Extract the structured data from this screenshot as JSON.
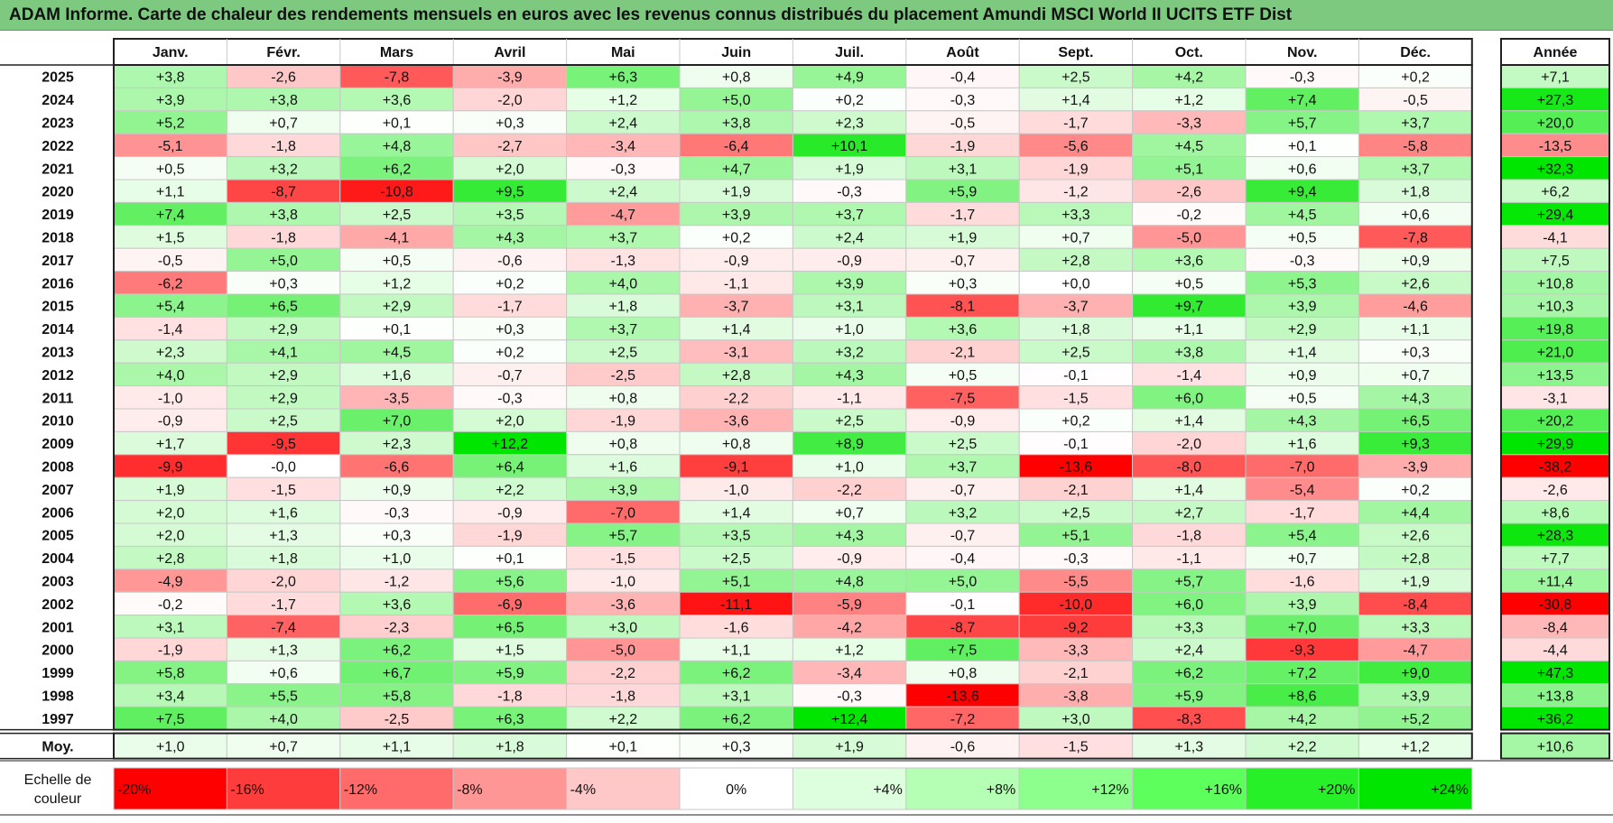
{
  "title": "ADAM Informe. Carte de chaleur des rendements mensuels en euros avec les revenus connus distribués du placement Amundi MSCI World II UCITS ETF Dist",
  "chart_data": {
    "type": "heatmap",
    "title": "ADAM Informe. Carte de chaleur des rendements mensuels en euros avec les revenus connus distribués du placement Amundi MSCI World II UCITS ETF Dist",
    "months": [
      "Janv.",
      "Févr.",
      "Mars",
      "Avril",
      "Mai",
      "Juin",
      "Juil.",
      "Août",
      "Sept.",
      "Oct.",
      "Nov.",
      "Déc."
    ],
    "annual_header": "Année",
    "rows": [
      {
        "year": "2025",
        "values": [
          "+3,8",
          "-2,6",
          "-7,8",
          "-3,9",
          "+6,3",
          "+0,8",
          "+4,9",
          "-0,4",
          "+2,5",
          "+4,2",
          "-0,3",
          "+0,2"
        ],
        "annual": "+7,1"
      },
      {
        "year": "2024",
        "values": [
          "+3,9",
          "+3,8",
          "+3,6",
          "-2,0",
          "+1,2",
          "+5,0",
          "+0,2",
          "-0,3",
          "+1,4",
          "+1,2",
          "+7,4",
          "-0,5"
        ],
        "annual": "+27,3"
      },
      {
        "year": "2023",
        "values": [
          "+5,2",
          "+0,7",
          "+0,1",
          "+0,3",
          "+2,4",
          "+3,8",
          "+2,3",
          "-0,5",
          "-1,7",
          "-3,3",
          "+5,7",
          "+3,7"
        ],
        "annual": "+20,0"
      },
      {
        "year": "2022",
        "values": [
          "-5,1",
          "-1,8",
          "+4,8",
          "-2,7",
          "-3,4",
          "-6,4",
          "+10,1",
          "-1,9",
          "-5,6",
          "+4,5",
          "+0,1",
          "-5,8"
        ],
        "annual": "-13,5"
      },
      {
        "year": "2021",
        "values": [
          "+0,5",
          "+3,2",
          "+6,2",
          "+2,0",
          "-0,3",
          "+4,7",
          "+1,9",
          "+3,1",
          "-1,9",
          "+5,1",
          "+0,6",
          "+3,7"
        ],
        "annual": "+32,3"
      },
      {
        "year": "2020",
        "values": [
          "+1,1",
          "-8,7",
          "-10,8",
          "+9,5",
          "+2,4",
          "+1,9",
          "-0,3",
          "+5,9",
          "-1,2",
          "-2,6",
          "+9,4",
          "+1,8"
        ],
        "annual": "+6,2"
      },
      {
        "year": "2019",
        "values": [
          "+7,4",
          "+3,8",
          "+2,5",
          "+3,5",
          "-4,7",
          "+3,9",
          "+3,7",
          "-1,7",
          "+3,3",
          "-0,2",
          "+4,5",
          "+0,6"
        ],
        "annual": "+29,4"
      },
      {
        "year": "2018",
        "values": [
          "+1,5",
          "-1,8",
          "-4,1",
          "+4,3",
          "+3,7",
          "+0,2",
          "+2,4",
          "+1,9",
          "+0,7",
          "-5,0",
          "+0,5",
          "-7,8"
        ],
        "annual": "-4,1"
      },
      {
        "year": "2017",
        "values": [
          "-0,5",
          "+5,0",
          "+0,5",
          "-0,6",
          "-1,3",
          "-0,9",
          "-0,9",
          "-0,7",
          "+2,8",
          "+3,6",
          "-0,3",
          "+0,9"
        ],
        "annual": "+7,5"
      },
      {
        "year": "2016",
        "values": [
          "-6,2",
          "+0,3",
          "+1,2",
          "+0,2",
          "+4,0",
          "-1,1",
          "+3,9",
          "+0,3",
          "+0,0",
          "+0,5",
          "+5,3",
          "+2,6"
        ],
        "annual": "+10,8"
      },
      {
        "year": "2015",
        "values": [
          "+5,4",
          "+6,5",
          "+2,9",
          "-1,7",
          "+1,8",
          "-3,7",
          "+3,1",
          "-8,1",
          "-3,7",
          "+9,7",
          "+3,9",
          "-4,6"
        ],
        "annual": "+10,3"
      },
      {
        "year": "2014",
        "values": [
          "-1,4",
          "+2,9",
          "+0,1",
          "+0,3",
          "+3,7",
          "+1,4",
          "+1,0",
          "+3,6",
          "+1,8",
          "+1,1",
          "+2,9",
          "+1,1"
        ],
        "annual": "+19,8"
      },
      {
        "year": "2013",
        "values": [
          "+2,3",
          "+4,1",
          "+4,5",
          "+0,2",
          "+2,5",
          "-3,1",
          "+3,2",
          "-2,1",
          "+2,5",
          "+3,8",
          "+1,4",
          "+0,3"
        ],
        "annual": "+21,0"
      },
      {
        "year": "2012",
        "values": [
          "+4,0",
          "+2,9",
          "+1,6",
          "-0,7",
          "-2,5",
          "+2,8",
          "+4,3",
          "+0,5",
          "-0,1",
          "-1,4",
          "+0,9",
          "+0,7"
        ],
        "annual": "+13,5"
      },
      {
        "year": "2011",
        "values": [
          "-1,0",
          "+2,9",
          "-3,5",
          "-0,3",
          "+0,8",
          "-2,2",
          "-1,1",
          "-7,5",
          "-1,5",
          "+6,0",
          "+0,5",
          "+4,3"
        ],
        "annual": "-3,1"
      },
      {
        "year": "2010",
        "values": [
          "-0,9",
          "+2,5",
          "+7,0",
          "+2,0",
          "-1,9",
          "-3,6",
          "+2,5",
          "-0,9",
          "+0,2",
          "+1,4",
          "+4,3",
          "+6,5"
        ],
        "annual": "+20,2"
      },
      {
        "year": "2009",
        "values": [
          "+1,7",
          "-9,5",
          "+2,3",
          "+12,2",
          "+0,8",
          "+0,8",
          "+8,9",
          "+2,5",
          "-0,1",
          "-2,0",
          "+1,6",
          "+9,3"
        ],
        "annual": "+29,9"
      },
      {
        "year": "2008",
        "values": [
          "-9,9",
          "-0,0",
          "-6,6",
          "+6,4",
          "+1,6",
          "-9,1",
          "+1,0",
          "+3,7",
          "-13,6",
          "-8,0",
          "-7,0",
          "-3,9"
        ],
        "annual": "-38,2"
      },
      {
        "year": "2007",
        "values": [
          "+1,9",
          "-1,5",
          "+0,9",
          "+2,2",
          "+3,9",
          "-1,0",
          "-2,2",
          "-0,7",
          "-2,1",
          "+1,4",
          "-5,4",
          "+0,2"
        ],
        "annual": "-2,6"
      },
      {
        "year": "2006",
        "values": [
          "+2,0",
          "+1,6",
          "-0,3",
          "-0,9",
          "-7,0",
          "+1,4",
          "+0,7",
          "+3,2",
          "+2,5",
          "+2,7",
          "-1,7",
          "+4,4"
        ],
        "annual": "+8,6"
      },
      {
        "year": "2005",
        "values": [
          "+2,0",
          "+1,3",
          "+0,3",
          "-1,9",
          "+5,7",
          "+3,5",
          "+4,3",
          "-0,7",
          "+5,1",
          "-1,8",
          "+5,4",
          "+2,6"
        ],
        "annual": "+28,3"
      },
      {
        "year": "2004",
        "values": [
          "+2,8",
          "+1,8",
          "+1,0",
          "+0,1",
          "-1,5",
          "+2,5",
          "-0,9",
          "-0,4",
          "-0,3",
          "-1,1",
          "+0,7",
          "+2,8"
        ],
        "annual": "+7,7"
      },
      {
        "year": "2003",
        "values": [
          "-4,9",
          "-2,0",
          "-1,2",
          "+5,6",
          "-1,0",
          "+5,1",
          "+4,8",
          "+5,0",
          "-5,5",
          "+5,7",
          "-1,6",
          "+1,9"
        ],
        "annual": "+11,4"
      },
      {
        "year": "2002",
        "values": [
          "-0,2",
          "-1,7",
          "+3,6",
          "-6,9",
          "-3,6",
          "-11,1",
          "-5,9",
          "-0,1",
          "-10,0",
          "+6,0",
          "+3,9",
          "-8,4"
        ],
        "annual": "-30,8"
      },
      {
        "year": "2001",
        "values": [
          "+3,1",
          "-7,4",
          "-2,3",
          "+6,5",
          "+3,0",
          "-1,6",
          "-4,2",
          "-8,7",
          "-9,2",
          "+3,3",
          "+7,0",
          "+3,3"
        ],
        "annual": "-8,4"
      },
      {
        "year": "2000",
        "values": [
          "-1,9",
          "+1,3",
          "+6,2",
          "+1,5",
          "-5,0",
          "+1,1",
          "+1,2",
          "+7,5",
          "-3,3",
          "+2,4",
          "-9,3",
          "-4,7"
        ],
        "annual": "-4,4"
      },
      {
        "year": "1999",
        "values": [
          "+5,8",
          "+0,6",
          "+6,7",
          "+5,9",
          "-2,2",
          "+6,2",
          "-3,4",
          "+0,8",
          "-2,1",
          "+6,2",
          "+7,2",
          "+9,0"
        ],
        "annual": "+47,3"
      },
      {
        "year": "1998",
        "values": [
          "+3,4",
          "+5,5",
          "+5,8",
          "-1,8",
          "-1,8",
          "+3,1",
          "-0,3",
          "-13,6",
          "-3,8",
          "+5,9",
          "+8,6",
          "+3,9"
        ],
        "annual": "+13,8"
      },
      {
        "year": "1997",
        "values": [
          "+7,5",
          "+4,0",
          "-2,5",
          "+6,3",
          "+2,2",
          "+6,2",
          "+12,4",
          "-7,2",
          "+3,0",
          "-8,3",
          "+4,2",
          "+5,2"
        ],
        "annual": "+36,2"
      }
    ],
    "average": {
      "label": "Moy.",
      "values": [
        "+1,0",
        "+0,7",
        "+1,1",
        "+1,8",
        "+0,1",
        "+0,3",
        "+1,9",
        "-0,6",
        "-1,5",
        "+1,3",
        "+2,2",
        "+1,2"
      ],
      "annual": "+10,6"
    },
    "scale": {
      "label_line1": "Echelle de",
      "label_line2": "couleur",
      "steps": [
        {
          "label": "-20%",
          "color": "#ff0000",
          "align": "left"
        },
        {
          "label": "-16%",
          "color": "#ff3c3c",
          "align": "left"
        },
        {
          "label": "-12%",
          "color": "#ff6b6b",
          "align": "left"
        },
        {
          "label": "-8%",
          "color": "#ff9696",
          "align": "left"
        },
        {
          "label": "-4%",
          "color": "#ffc8c8",
          "align": "left"
        },
        {
          "label": "0%",
          "color": "#ffffff",
          "align": "center"
        },
        {
          "label": "+4%",
          "color": "#ddffdd",
          "align": "right"
        },
        {
          "label": "+8%",
          "color": "#b4ffb4",
          "align": "right"
        },
        {
          "label": "+12%",
          "color": "#8cff8c",
          "align": "right"
        },
        {
          "label": "+16%",
          "color": "#5cff5c",
          "align": "right"
        },
        {
          "label": "+20%",
          "color": "#28f028",
          "align": "right"
        },
        {
          "label": "+24%",
          "color": "#00e600",
          "align": "right"
        }
      ]
    },
    "colors": {
      "title_bar": "#7dc97f",
      "grid": "#c8c8c8",
      "border": "#222222"
    }
  }
}
